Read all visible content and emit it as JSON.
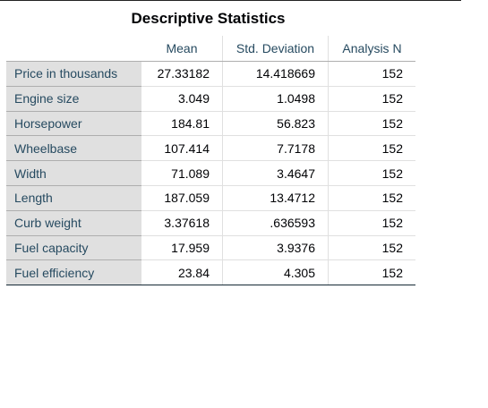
{
  "title": "Descriptive Statistics",
  "columns": {
    "mean": "Mean",
    "std_dev": "Std. Deviation",
    "analysis_n": "Analysis N"
  },
  "rows": [
    {
      "label": "Price in thousands",
      "mean": "27.33182",
      "std_dev": "14.418669",
      "n": "152"
    },
    {
      "label": "Engine size",
      "mean": "3.049",
      "std_dev": "1.0498",
      "n": "152"
    },
    {
      "label": "Horsepower",
      "mean": "184.81",
      "std_dev": "56.823",
      "n": "152"
    },
    {
      "label": "Wheelbase",
      "mean": "107.414",
      "std_dev": "7.7178",
      "n": "152"
    },
    {
      "label": "Width",
      "mean": "71.089",
      "std_dev": "3.4647",
      "n": "152"
    },
    {
      "label": "Length",
      "mean": "187.059",
      "std_dev": "13.4712",
      "n": "152"
    },
    {
      "label": "Curb weight",
      "mean": "3.37618",
      "std_dev": ".636593",
      "n": "152"
    },
    {
      "label": "Fuel capacity",
      "mean": "17.959",
      "std_dev": "3.9376",
      "n": "152"
    },
    {
      "label": "Fuel efficiency",
      "mean": "23.84",
      "std_dev": "4.305",
      "n": "152"
    }
  ]
}
